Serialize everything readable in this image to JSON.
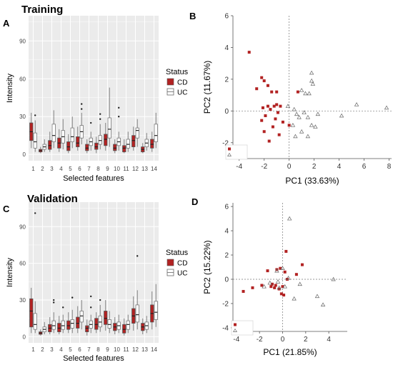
{
  "colors": {
    "cd": "#b22222",
    "uc": "#ffffff",
    "uc_stroke": "#777777",
    "panel_bg": "#ebebeb",
    "grid": "#ffffff"
  },
  "figure": {
    "section_training": "Training",
    "section_validation": "Validation",
    "panel_a": "A",
    "panel_b": "B",
    "panel_c": "C",
    "panel_d": "D"
  },
  "chart_data": [
    {
      "id": "A",
      "type": "box",
      "title": "Training",
      "xlabel": "Selected features",
      "ylabel": "Intensity",
      "ylim": [
        -5,
        110
      ],
      "yticks": [
        0,
        30,
        60,
        90
      ],
      "categories": [
        "1",
        "2",
        "3",
        "4",
        "5",
        "6",
        "7",
        "8",
        "9",
        "10",
        "11",
        "12",
        "13",
        "14"
      ],
      "legend": {
        "title": "Status",
        "entries": [
          "CD",
          "UC"
        ]
      },
      "series": [
        {
          "name": "CD",
          "boxes": [
            {
              "min": 5,
              "q1": 11,
              "med": 18,
              "q3": 25,
              "max": 33,
              "out": []
            },
            {
              "min": 1,
              "q1": 2,
              "med": 3,
              "q3": 4,
              "max": 6,
              "out": []
            },
            {
              "min": 2,
              "q1": 4,
              "med": 7,
              "q3": 11,
              "max": 18,
              "out": []
            },
            {
              "min": 2,
              "q1": 5,
              "med": 9,
              "q3": 13,
              "max": 20,
              "out": []
            },
            {
              "min": 1,
              "q1": 3,
              "med": 6,
              "q3": 10,
              "max": 16,
              "out": []
            },
            {
              "min": 3,
              "q1": 6,
              "med": 9,
              "q3": 14,
              "max": 22,
              "out": []
            },
            {
              "min": 1,
              "q1": 3,
              "med": 5,
              "q3": 8,
              "max": 12,
              "out": []
            },
            {
              "min": 1,
              "q1": 4,
              "med": 6,
              "q3": 9,
              "max": 14,
              "out": []
            },
            {
              "min": 3,
              "q1": 7,
              "med": 12,
              "q3": 16,
              "max": 25,
              "out": []
            },
            {
              "min": 1,
              "q1": 3,
              "med": 5,
              "q3": 8,
              "max": 12,
              "out": []
            },
            {
              "min": 1,
              "q1": 2,
              "med": 5,
              "q3": 7,
              "max": 12,
              "out": []
            },
            {
              "min": 3,
              "q1": 6,
              "med": 11,
              "q3": 15,
              "max": 22,
              "out": []
            },
            {
              "min": 1,
              "q1": 2,
              "med": 4,
              "q3": 6,
              "max": 9,
              "out": []
            },
            {
              "min": 2,
              "q1": 5,
              "med": 8,
              "q3": 12,
              "max": 18,
              "out": []
            }
          ]
        },
        {
          "name": "UC",
          "boxes": [
            {
              "min": 2,
              "q1": 5,
              "med": 10,
              "q3": 17,
              "max": 27,
              "out": [
                31
              ]
            },
            {
              "min": 2,
              "q1": 4,
              "med": 6,
              "q3": 8,
              "max": 12,
              "out": []
            },
            {
              "min": 5,
              "q1": 10,
              "med": 15,
              "q3": 24,
              "max": 35,
              "out": []
            },
            {
              "min": 4,
              "q1": 9,
              "med": 14,
              "q3": 19,
              "max": 28,
              "out": []
            },
            {
              "min": 5,
              "q1": 10,
              "med": 14,
              "q3": 21,
              "max": 30,
              "out": []
            },
            {
              "min": 8,
              "q1": 13,
              "med": 18,
              "q3": 23,
              "max": 33,
              "out": [
                36,
                40
              ]
            },
            {
              "min": 3,
              "q1": 7,
              "med": 10,
              "q3": 13,
              "max": 18,
              "out": [
                25
              ]
            },
            {
              "min": 4,
              "q1": 8,
              "med": 11,
              "q3": 15,
              "max": 24,
              "out": [
                28,
                32
              ]
            },
            {
              "min": 6,
              "q1": 13,
              "med": 20,
              "q3": 29,
              "max": 53,
              "out": []
            },
            {
              "min": 3,
              "q1": 7,
              "med": 10,
              "q3": 13,
              "max": 18,
              "out": [
                30,
                37
              ]
            },
            {
              "min": 2,
              "q1": 5,
              "med": 8,
              "q3": 12,
              "max": 18,
              "out": []
            },
            {
              "min": 6,
              "q1": 13,
              "med": 19,
              "q3": 21,
              "max": 28,
              "out": []
            },
            {
              "min": 3,
              "q1": 6,
              "med": 9,
              "q3": 12,
              "max": 17,
              "out": []
            },
            {
              "min": 5,
              "q1": 10,
              "med": 15,
              "q3": 24,
              "max": 33,
              "out": []
            }
          ]
        }
      ]
    },
    {
      "id": "B",
      "type": "scatter",
      "xlabel": "PC1 (33.63%)",
      "ylabel": "PC2 (11.67%)",
      "xlim": [
        -4.5,
        8.2
      ],
      "ylim": [
        -3.0,
        6.0
      ],
      "xticks": [
        -4,
        -2,
        0,
        2,
        4,
        6,
        8
      ],
      "yticks": [
        -2,
        0,
        2,
        4,
        6
      ],
      "legend": {
        "entries": [
          "CD",
          "UC"
        ]
      },
      "series": [
        {
          "name": "CD",
          "points": [
            [
              -3.2,
              3.7
            ],
            [
              -2.6,
              1.4
            ],
            [
              -2.2,
              2.1
            ],
            [
              -2.0,
              1.9
            ],
            [
              -1.7,
              1.6
            ],
            [
              -1.4,
              1.2
            ],
            [
              -1.0,
              1.2
            ],
            [
              -2.1,
              0.2
            ],
            [
              -2.2,
              -0.6
            ],
            [
              -2.0,
              -1.3
            ],
            [
              -1.9,
              -0.3
            ],
            [
              -1.7,
              0.3
            ],
            [
              -1.5,
              0.1
            ],
            [
              -1.2,
              0.3
            ],
            [
              -0.9,
              -0.1
            ],
            [
              -1.1,
              -0.5
            ],
            [
              -1.3,
              -1.0
            ],
            [
              -1.6,
              -1.9
            ],
            [
              -0.8,
              -1.5
            ],
            [
              -0.5,
              -0.7
            ],
            [
              -0.7,
              0.3
            ],
            [
              0.0,
              -0.9
            ],
            [
              -1.0,
              0.4
            ],
            [
              0.7,
              1.2
            ]
          ]
        },
        {
          "name": "UC",
          "points": [
            [
              -0.1,
              0.3
            ],
            [
              0.4,
              0.1
            ],
            [
              1.0,
              1.3
            ],
            [
              1.3,
              1.1
            ],
            [
              1.6,
              1.1
            ],
            [
              1.8,
              1.9
            ],
            [
              1.8,
              2.4
            ],
            [
              1.9,
              1.7
            ],
            [
              2.3,
              -0.2
            ],
            [
              0.3,
              -0.9
            ],
            [
              0.8,
              -0.4
            ],
            [
              1.2,
              -0.1
            ],
            [
              1.5,
              -0.4
            ],
            [
              1.8,
              -0.9
            ],
            [
              2.1,
              -1.0
            ],
            [
              1.0,
              -1.3
            ],
            [
              0.5,
              -1.6
            ],
            [
              1.5,
              -1.6
            ],
            [
              4.2,
              -0.3
            ],
            [
              5.4,
              0.4
            ],
            [
              7.8,
              0.2
            ],
            [
              0.6,
              -0.2
            ]
          ]
        }
      ]
    },
    {
      "id": "C",
      "type": "box",
      "title": "Validation",
      "xlabel": "Selected features",
      "ylabel": "Intensity",
      "ylim": [
        -5,
        110
      ],
      "yticks": [
        0,
        30,
        60,
        90
      ],
      "categories": [
        "1",
        "2",
        "3",
        "4",
        "5",
        "6",
        "7",
        "8",
        "9",
        "10",
        "11",
        "12",
        "13",
        "14"
      ],
      "legend": {
        "title": "Status",
        "entries": [
          "CD",
          "UC"
        ]
      },
      "series": [
        {
          "name": "CD",
          "boxes": [
            {
              "min": 3,
              "q1": 8,
              "med": 21,
              "q3": 31,
              "max": 40,
              "out": []
            },
            {
              "min": 1,
              "q1": 2,
              "med": 3,
              "q3": 4,
              "max": 6,
              "out": []
            },
            {
              "min": 2,
              "q1": 4,
              "med": 7,
              "q3": 10,
              "max": 16,
              "out": []
            },
            {
              "min": 2,
              "q1": 4,
              "med": 7,
              "q3": 11,
              "max": 17,
              "out": []
            },
            {
              "min": 3,
              "q1": 6,
              "med": 9,
              "q3": 13,
              "max": 20,
              "out": []
            },
            {
              "min": 3,
              "q1": 7,
              "med": 11,
              "q3": 16,
              "max": 25,
              "out": []
            },
            {
              "min": 1,
              "q1": 4,
              "med": 7,
              "q3": 9,
              "max": 14,
              "out": []
            },
            {
              "min": 3,
              "q1": 6,
              "med": 10,
              "q3": 15,
              "max": 20,
              "out": []
            },
            {
              "min": 5,
              "q1": 10,
              "med": 15,
              "q3": 21,
              "max": 30,
              "out": []
            },
            {
              "min": 2,
              "q1": 5,
              "med": 8,
              "q3": 11,
              "max": 16,
              "out": []
            },
            {
              "min": 1,
              "q1": 3,
              "med": 6,
              "q3": 10,
              "max": 15,
              "out": []
            },
            {
              "min": 5,
              "q1": 11,
              "med": 17,
              "q3": 23,
              "max": 33,
              "out": []
            },
            {
              "min": 2,
              "q1": 5,
              "med": 8,
              "q3": 11,
              "max": 15,
              "out": []
            },
            {
              "min": 6,
              "q1": 12,
              "med": 19,
              "q3": 26,
              "max": 37,
              "out": []
            }
          ]
        },
        {
          "name": "UC",
          "boxes": [
            {
              "min": 3,
              "q1": 6,
              "med": 10,
              "q3": 19,
              "max": 29,
              "out": [
                101
              ]
            },
            {
              "min": 2,
              "q1": 4,
              "med": 6,
              "q3": 8,
              "max": 12,
              "out": []
            },
            {
              "min": 3,
              "q1": 6,
              "med": 9,
              "q3": 13,
              "max": 20,
              "out": [
                28,
                30
              ]
            },
            {
              "min": 3,
              "q1": 6,
              "med": 9,
              "q3": 13,
              "max": 18,
              "out": [
                24
              ]
            },
            {
              "min": 3,
              "q1": 7,
              "med": 11,
              "q3": 14,
              "max": 22,
              "out": [
                32
              ]
            },
            {
              "min": 6,
              "q1": 12,
              "med": 17,
              "q3": 21,
              "max": 30,
              "out": []
            },
            {
              "min": 3,
              "q1": 7,
              "med": 10,
              "q3": 13,
              "max": 18,
              "out": [
                24,
                33
              ]
            },
            {
              "min": 4,
              "q1": 8,
              "med": 12,
              "q3": 17,
              "max": 26,
              "out": [
                30
              ]
            },
            {
              "min": 3,
              "q1": 7,
              "med": 10,
              "q3": 14,
              "max": 21,
              "out": []
            },
            {
              "min": 3,
              "q1": 6,
              "med": 9,
              "q3": 12,
              "max": 18,
              "out": []
            },
            {
              "min": 3,
              "q1": 6,
              "med": 10,
              "q3": 13,
              "max": 18,
              "out": []
            },
            {
              "min": 6,
              "q1": 12,
              "med": 18,
              "q3": 26,
              "max": 38,
              "out": [
                66
              ]
            },
            {
              "min": 3,
              "q1": 6,
              "med": 9,
              "q3": 12,
              "max": 17,
              "out": []
            },
            {
              "min": 8,
              "q1": 14,
              "med": 20,
              "q3": 29,
              "max": 43,
              "out": []
            }
          ]
        }
      ]
    },
    {
      "id": "D",
      "type": "scatter",
      "xlabel": "PC1 (21.85%)",
      "ylabel": "PC2 (15.22%)",
      "xlim": [
        -4.3,
        5.6
      ],
      "ylim": [
        -4.3,
        6.3
      ],
      "xticks": [
        -4,
        -2,
        0,
        2,
        4
      ],
      "yticks": [
        -4,
        -2,
        0,
        2,
        4,
        6
      ],
      "legend": {
        "entries": [
          "CD",
          "UC"
        ]
      },
      "series": [
        {
          "name": "CD",
          "points": [
            [
              -3.4,
              -1.0
            ],
            [
              -2.6,
              -0.7
            ],
            [
              -1.8,
              -0.5
            ],
            [
              -1.3,
              0.7
            ],
            [
              -1.0,
              -0.6
            ],
            [
              -0.9,
              -0.4
            ],
            [
              -0.7,
              -0.7
            ],
            [
              -0.6,
              -0.5
            ],
            [
              -0.5,
              0.8
            ],
            [
              -0.3,
              -0.8
            ],
            [
              -0.2,
              0.9
            ],
            [
              0.0,
              -0.6
            ],
            [
              0.1,
              -1.3
            ],
            [
              0.2,
              0.6
            ],
            [
              0.3,
              2.3
            ],
            [
              0.4,
              0.0
            ],
            [
              1.2,
              0.4
            ],
            [
              1.7,
              1.2
            ],
            [
              -0.1,
              -1.2
            ]
          ]
        },
        {
          "name": "UC",
          "points": [
            [
              0.6,
              5.0
            ],
            [
              -0.4,
              -0.2
            ],
            [
              -0.3,
              -0.7
            ],
            [
              -1.6,
              -0.6
            ],
            [
              0.5,
              0.1
            ],
            [
              1.0,
              -1.6
            ],
            [
              0.2,
              -0.6
            ],
            [
              3.0,
              -1.4
            ],
            [
              3.5,
              -2.1
            ],
            [
              4.4,
              0.0
            ],
            [
              -0.5,
              0.7
            ],
            [
              0.0,
              0.9
            ],
            [
              1.5,
              -0.4
            ],
            [
              -1.1,
              -0.3
            ]
          ]
        }
      ]
    }
  ]
}
